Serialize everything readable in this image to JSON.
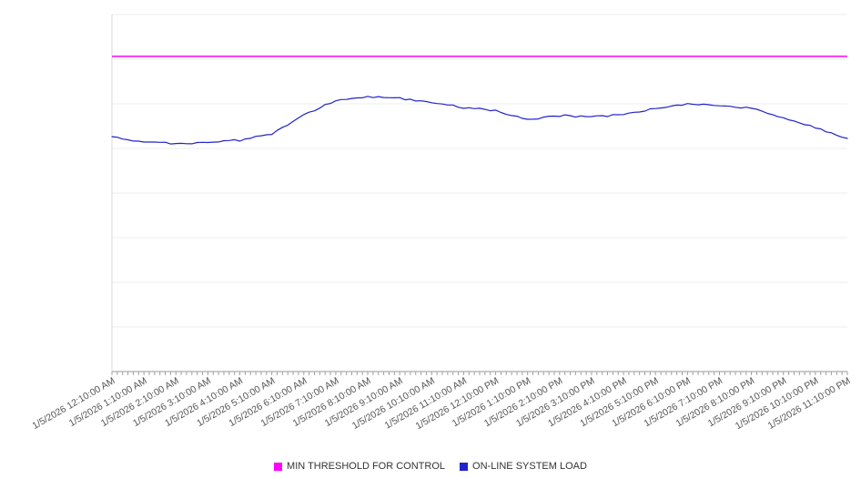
{
  "colors": {
    "background": "#ffffff",
    "threshold_line": "#ff00ff",
    "load_line": "#2222cc",
    "gridline": "#ececec",
    "axis": "#999999",
    "minor_tick": "#a0a0a0",
    "tick_label_text": "#555555",
    "legend_text": "#333333"
  },
  "chart_data": {
    "type": "line",
    "title": "",
    "xlabel": "",
    "ylabel": "",
    "ylim": [
      0,
      100
    ],
    "y_axis_labels_visible": false,
    "grid": "horizontal",
    "legend_position": "bottom-center",
    "categories": [
      "1/5/2026 12:10:00 AM",
      "1/5/2026 1:10:00 AM",
      "1/5/2026 2:10:00 AM",
      "1/5/2026 3:10:00 AM",
      "1/5/2026 4:10:00 AM",
      "1/5/2026 5:10:00 AM",
      "1/5/2026 6:10:00 AM",
      "1/5/2026 7:10:00 AM",
      "1/5/2026 8:10:00 AM",
      "1/5/2026 9:10:00 AM",
      "1/5/2026 10:10:00 AM",
      "1/5/2026 11:10:00 AM",
      "1/5/2026 12:10:00 PM",
      "1/5/2026 1:10:00 PM",
      "1/5/2026 2:10:00 PM",
      "1/5/2026 3:10:00 PM",
      "1/5/2026 4:10:00 PM",
      "1/5/2026 5:10:00 PM",
      "1/5/2026 6:10:00 PM",
      "1/5/2026 7:10:00 PM",
      "1/5/2026 8:10:00 PM",
      "1/5/2026 9:10:00 PM",
      "1/5/2026 10:10:00 PM",
      "1/5/2026 11:10:00 PM"
    ],
    "series": [
      {
        "name": "MIN THRESHOLD FOR CONTROL",
        "type": "threshold",
        "color": "#ff00ff",
        "value": 88.3
      },
      {
        "name": "ON-LINE SYSTEM LOAD",
        "type": "line",
        "color": "#2222cc",
        "values": [
          65.8,
          64.3,
          63.8,
          64.3,
          64.8,
          66.6,
          71.7,
          76.0,
          77.0,
          76.5,
          75.5,
          74.0,
          73.0,
          70.7,
          71.7,
          71.4,
          71.9,
          73.7,
          75.0,
          74.5,
          73.7,
          70.9,
          68.4,
          65.3
        ]
      }
    ]
  }
}
